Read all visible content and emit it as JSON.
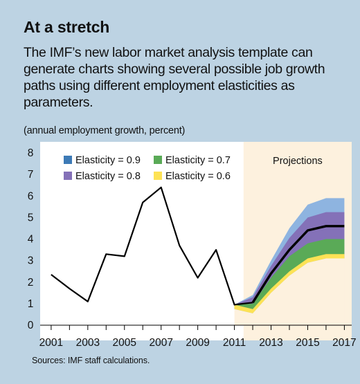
{
  "title": "At a stretch",
  "subtitle": "The IMF’s new labor market analysis template can generate charts showing several possible job growth paths using different employment elasticities as parameters.",
  "unit_note": "(annual employment growth, percent)",
  "source": "Sources: IMF staff calculations.",
  "colors": {
    "background": "#bdd3e3",
    "projection_shade": "#fdf1de",
    "elasticity_0_9": "#8eb4e0",
    "elasticity_0_8": "#8471b8",
    "elasticity_0_7": "#5aaa57",
    "elasticity_0_6": "#fde255",
    "line": "#000000"
  },
  "chart_data": {
    "type": "line",
    "x_range": [
      2000.4,
      2017.4
    ],
    "ylim": [
      0,
      8
    ],
    "yticks": [
      0,
      1,
      2,
      3,
      4,
      5,
      6,
      7,
      8
    ],
    "xtick_labels": [
      2001,
      2003,
      2005,
      2007,
      2009,
      2011,
      2013,
      2015,
      2017
    ],
    "x_minor_ticks": [
      2001,
      2002,
      2003,
      2004,
      2005,
      2006,
      2007,
      2008,
      2009,
      2010,
      2011,
      2012,
      2013,
      2014,
      2015,
      2016,
      2017
    ],
    "grid": false,
    "projections_label": "Projections",
    "projections_start": 2011.5,
    "historical": {
      "x": [
        2001,
        2002,
        2003,
        2004,
        2005,
        2006,
        2007,
        2008,
        2009,
        2010,
        2011,
        2012
      ],
      "values": [
        2.35,
        1.7,
        1.1,
        3.3,
        3.2,
        5.7,
        6.4,
        3.7,
        2.2,
        3.5,
        0.95,
        1.05
      ]
    },
    "baseline": {
      "x": [
        2012,
        2013,
        2014,
        2015,
        2016,
        2017
      ],
      "values": [
        1.05,
        2.4,
        3.5,
        4.4,
        4.6,
        4.6
      ]
    },
    "band_x": [
      2011,
      2012,
      2013,
      2014,
      2015,
      2016,
      2017
    ],
    "series": [
      {
        "name": "Elasticity = 0.9",
        "color_key": "elasticity_0_9",
        "values": [
          0.95,
          1.4,
          3.0,
          4.5,
          5.6,
          5.9,
          5.9
        ]
      },
      {
        "name": "Elasticity = 0.8",
        "color_key": "elasticity_0_8",
        "values": [
          0.95,
          1.3,
          2.75,
          4.05,
          5.0,
          5.25,
          5.25
        ]
      },
      {
        "name": "Elasticity = 0.7",
        "color_key": "elasticity_0_7",
        "values": [
          0.95,
          1.0,
          2.2,
          3.2,
          3.8,
          4.0,
          4.0
        ]
      },
      {
        "name": "Elasticity = 0.6",
        "color_key": "elasticity_0_6",
        "values": [
          0.95,
          0.75,
          1.7,
          2.5,
          3.1,
          3.3,
          3.3
        ]
      }
    ],
    "legend_order": [
      0,
      2,
      1,
      3
    ]
  }
}
